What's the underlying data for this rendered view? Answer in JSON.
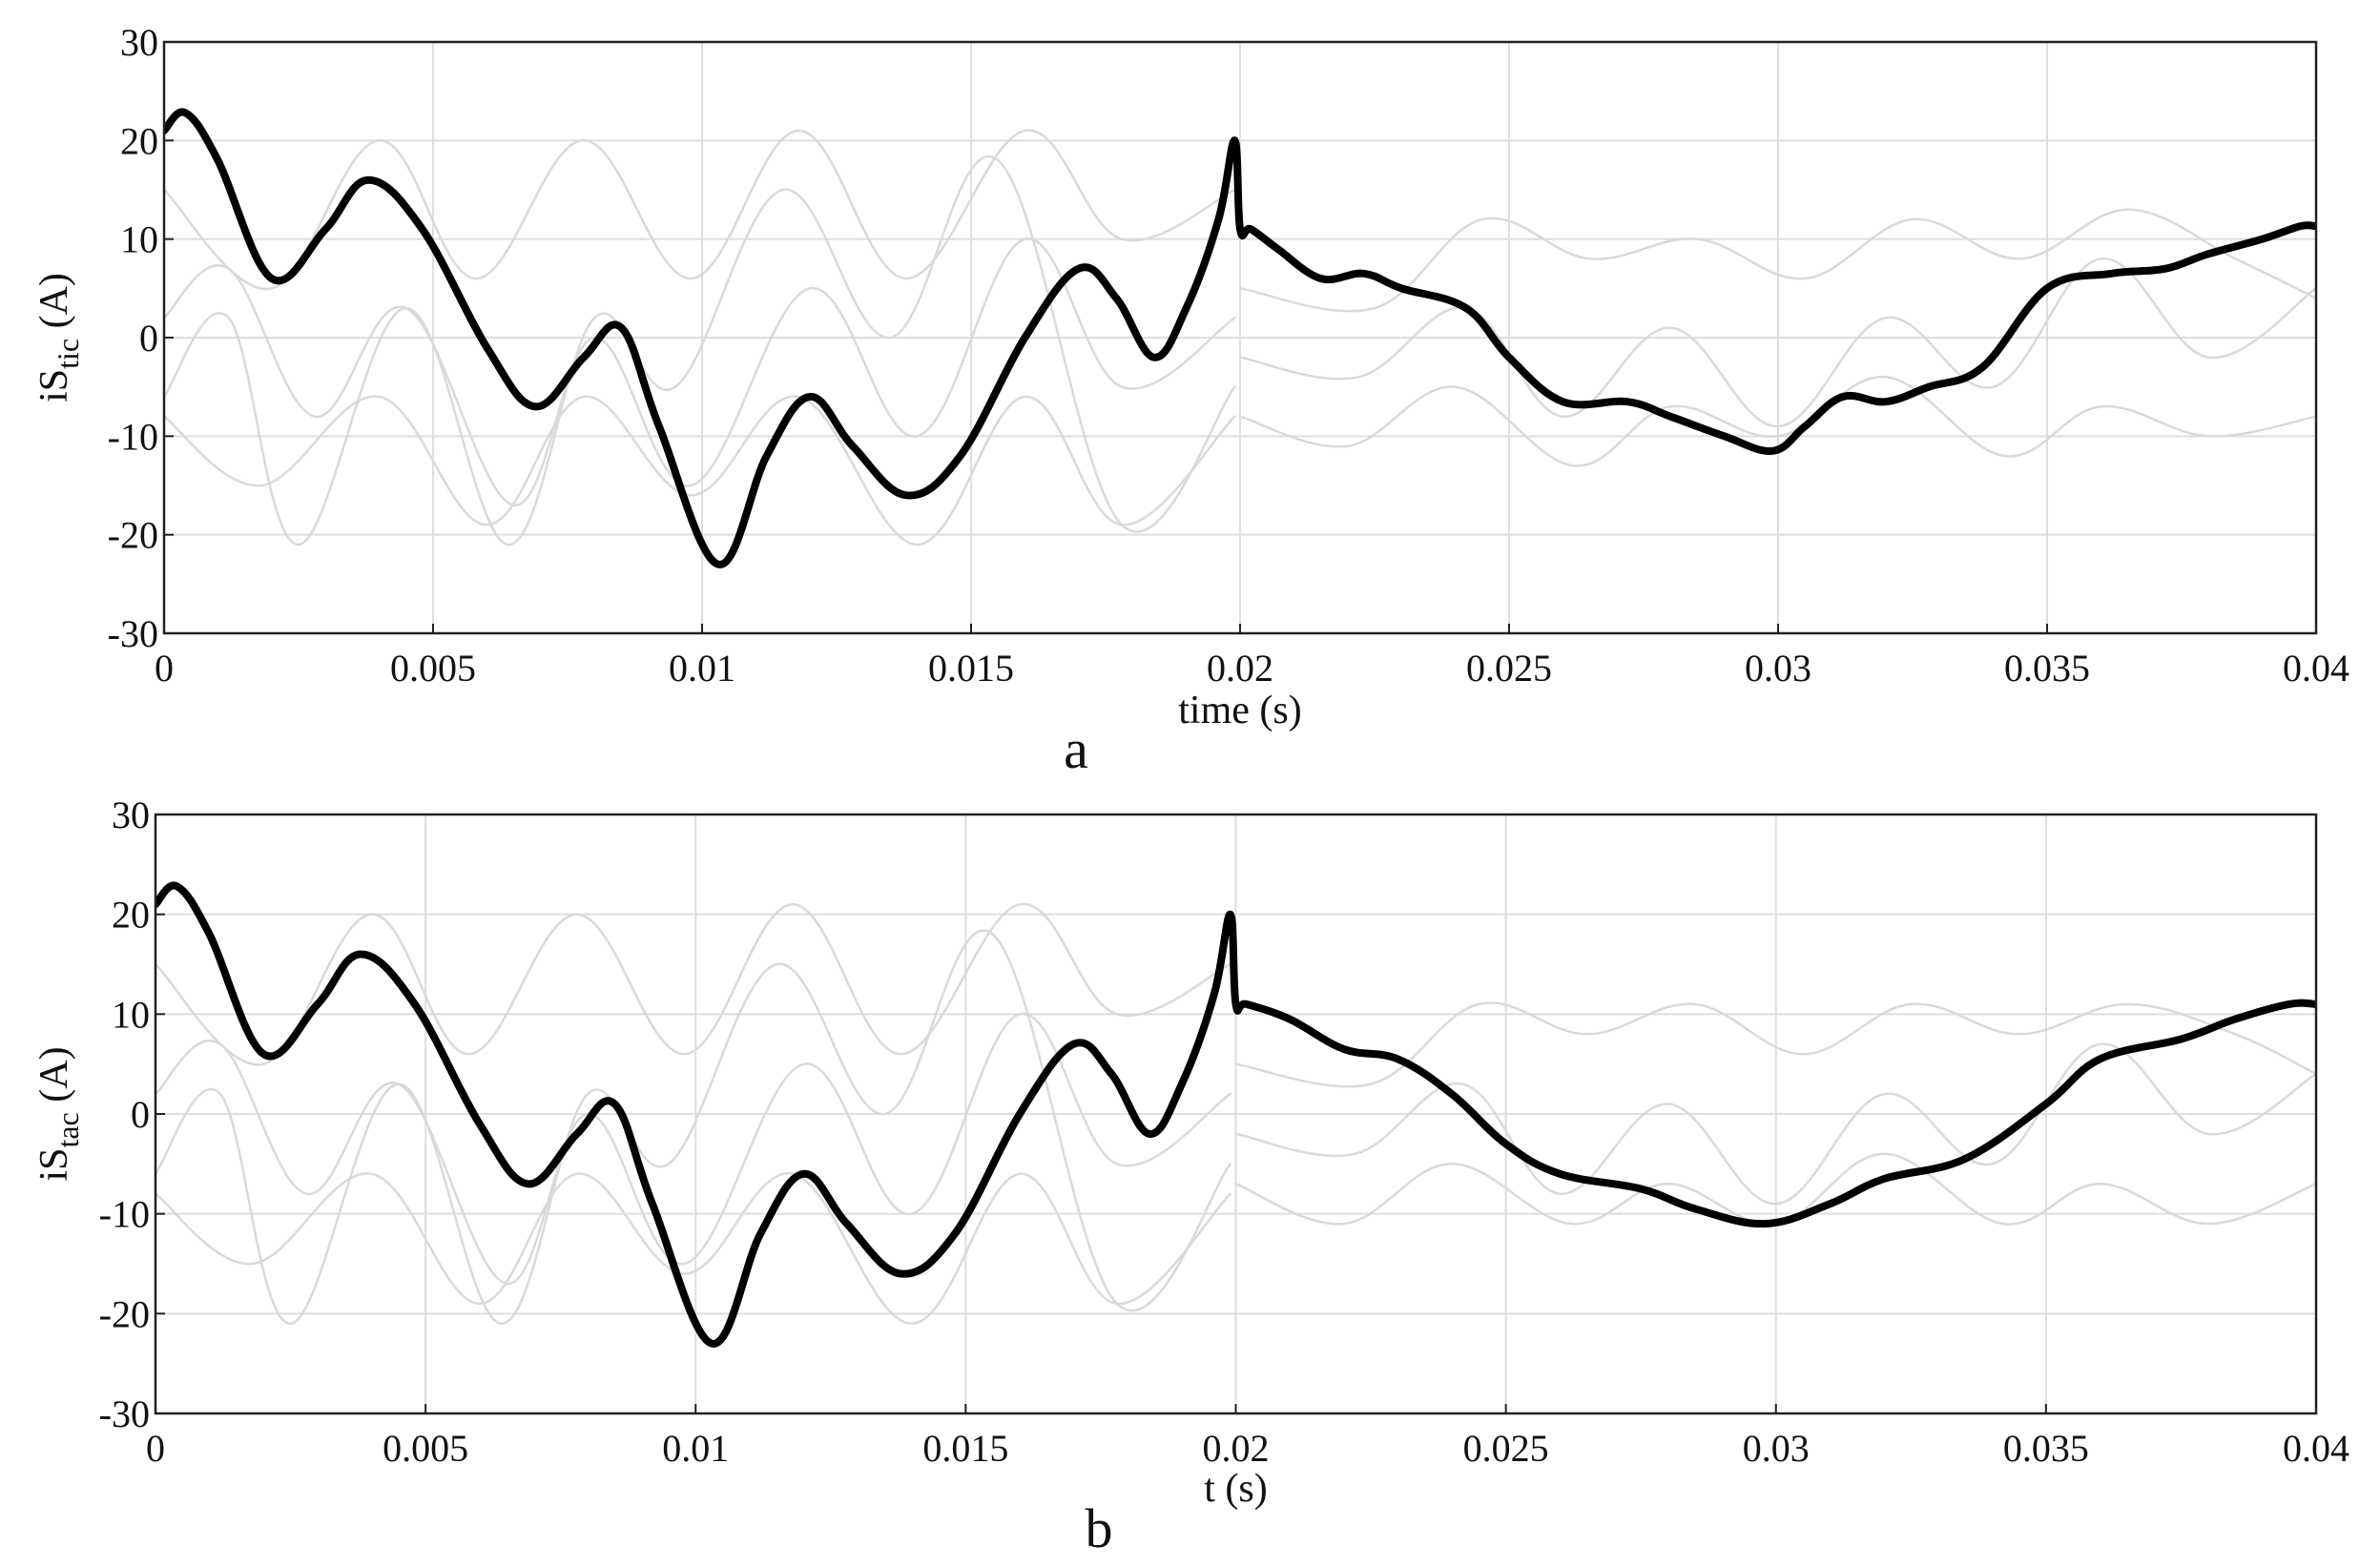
{
  "chart_data": [
    {
      "type": "line",
      "panel_label": "a",
      "xlabel": "time (s)",
      "ylabel": {
        "main": "iS",
        "sub": "tic",
        "unit": " (A)"
      },
      "xlim": [
        0,
        0.04
      ],
      "ylim": [
        -30,
        30
      ],
      "xticks": [
        0,
        0.005,
        0.01,
        0.015,
        0.02,
        0.025,
        0.03,
        0.035,
        0.04
      ],
      "xtick_labels": [
        "0",
        "0.005",
        "0.01",
        "0.015",
        "0.02",
        "0.025",
        "0.03",
        "0.035",
        "0.04"
      ],
      "yticks": [
        -30,
        -20,
        -10,
        0,
        10,
        20,
        30
      ],
      "ytick_labels": [
        "-30",
        "-20",
        "-10",
        "0",
        "10",
        "20",
        "30"
      ],
      "grid": true,
      "colors": {
        "main": "#000000",
        "background_curves": "#d9d9d9",
        "grid": "#dedede"
      },
      "series": [
        {
          "role": "main",
          "x": [
            0,
            0.0004,
            0.001,
            0.002,
            0.003,
            0.0038,
            0.0048,
            0.006,
            0.0069,
            0.0078,
            0.0085,
            0.0092,
            0.0103,
            0.0112,
            0.012,
            0.0128,
            0.0138,
            0.0148,
            0.016,
            0.017,
            0.0177,
            0.0184,
            0.019,
            0.0196,
            0.0199,
            0.02,
            0.0202,
            0.0207,
            0.0215,
            0.0223,
            0.023,
            0.0242,
            0.025,
            0.026,
            0.0272,
            0.028,
            0.029,
            0.0299,
            0.0305,
            0.0312,
            0.032,
            0.0328,
            0.0338,
            0.035,
            0.0362,
            0.0372,
            0.038,
            0.039,
            0.0397,
            0.04
          ],
          "y": [
            21,
            22.8,
            18,
            6,
            11,
            16,
            11,
            -1,
            -7,
            -2,
            1,
            -9,
            -23,
            -12,
            -6,
            -11,
            -16,
            -12,
            0,
            7,
            4,
            -2,
            3,
            12,
            20,
            11,
            11,
            9,
            6,
            6.5,
            5,
            3,
            -2,
            -6.5,
            -6.5,
            -8,
            -10,
            -11.5,
            -9,
            -6,
            -6.5,
            -5,
            -3,
            5,
            6.5,
            7,
            8.5,
            10,
            11.3,
            11.3
          ]
        },
        {
          "role": "background",
          "x": [
            0,
            0.002,
            0.004,
            0.0058,
            0.0078,
            0.0098,
            0.0118,
            0.0138,
            0.016,
            0.0178,
            0.0199
          ],
          "y": [
            15,
            5,
            20,
            6,
            20,
            6,
            21,
            6,
            21,
            10,
            15
          ]
        },
        {
          "role": "background",
          "x": [
            0,
            0.0012,
            0.0028,
            0.0045,
            0.0065,
            0.008,
            0.0098,
            0.012,
            0.014,
            0.016,
            0.0178,
            0.0199
          ],
          "y": [
            2,
            7,
            -8,
            3,
            -17,
            0,
            -15,
            5,
            -10,
            10,
            -5,
            2
          ]
        },
        {
          "role": "background",
          "x": [
            0,
            0.0012,
            0.0025,
            0.0045,
            0.0064,
            0.008,
            0.0095,
            0.0115,
            0.0135,
            0.0155,
            0.0178,
            0.0199
          ],
          "y": [
            -6,
            2,
            -21,
            3,
            -21,
            2,
            -5,
            15,
            0,
            18,
            -19,
            -5
          ]
        },
        {
          "role": "background",
          "x": [
            0,
            0.0018,
            0.004,
            0.006,
            0.0078,
            0.0098,
            0.0118,
            0.014,
            0.016,
            0.0178,
            0.0199
          ],
          "y": [
            -8,
            -15,
            -6,
            -19,
            -6,
            -16,
            -6,
            -21,
            -6,
            -19,
            -8
          ]
        },
        {
          "role": "background",
          "x": [
            0.02,
            0.0225,
            0.0245,
            0.0265,
            0.0285,
            0.0305,
            0.0325,
            0.0345,
            0.0365,
            0.0385,
            0.04
          ],
          "y": [
            5,
            3,
            12,
            8,
            10,
            6,
            12,
            8,
            13,
            8,
            4
          ]
        },
        {
          "role": "background",
          "x": [
            0.02,
            0.0222,
            0.0242,
            0.026,
            0.028,
            0.03,
            0.032,
            0.034,
            0.036,
            0.038,
            0.04
          ],
          "y": [
            -2,
            -4,
            3,
            -8,
            1,
            -9,
            2,
            -5,
            8,
            -2,
            5
          ]
        },
        {
          "role": "background",
          "x": [
            0.02,
            0.022,
            0.024,
            0.0262,
            0.028,
            0.03,
            0.032,
            0.0342,
            0.036,
            0.038,
            0.04
          ],
          "y": [
            -8,
            -11,
            -5,
            -13,
            -7,
            -10,
            -4,
            -12,
            -7,
            -10,
            -8
          ]
        }
      ]
    },
    {
      "type": "line",
      "panel_label": "b",
      "xlabel": "t (s)",
      "ylabel": {
        "main": "iS",
        "sub": "tac",
        "unit": " (A)"
      },
      "xlim": [
        0,
        0.04
      ],
      "ylim": [
        -30,
        30
      ],
      "xticks": [
        0,
        0.005,
        0.01,
        0.015,
        0.02,
        0.025,
        0.03,
        0.035,
        0.04
      ],
      "xtick_labels": [
        "0",
        "0.005",
        "0.01",
        "0.015",
        "0.02",
        "0.025",
        "0.03",
        "0.035",
        "0.04"
      ],
      "yticks": [
        -30,
        -20,
        -10,
        0,
        10,
        20,
        30
      ],
      "ytick_labels": [
        "-30",
        "-20",
        "-10",
        "0",
        "10",
        "20",
        "30"
      ],
      "grid": true,
      "colors": {
        "main": "#000000",
        "background_curves": "#d9d9d9",
        "grid": "#dedede"
      },
      "series": [
        {
          "role": "main",
          "x": [
            0,
            0.0004,
            0.001,
            0.002,
            0.003,
            0.0038,
            0.0048,
            0.006,
            0.0069,
            0.0078,
            0.0085,
            0.0092,
            0.0103,
            0.0112,
            0.012,
            0.0128,
            0.0138,
            0.0148,
            0.016,
            0.017,
            0.0177,
            0.0184,
            0.019,
            0.0196,
            0.0199,
            0.02,
            0.0202,
            0.021,
            0.022,
            0.023,
            0.024,
            0.025,
            0.026,
            0.0275,
            0.0285,
            0.0298,
            0.031,
            0.032,
            0.0335,
            0.035,
            0.036,
            0.0375,
            0.0385,
            0.0395,
            0.04
          ],
          "y": [
            21,
            22.8,
            18,
            6,
            11,
            16,
            11,
            -1,
            -7,
            -2,
            1,
            -9,
            -23,
            -12,
            -6,
            -11,
            -16,
            -12,
            0,
            7,
            4,
            -2,
            3,
            12,
            20,
            11,
            11,
            9.5,
            6.5,
            5.5,
            2,
            -3,
            -6,
            -7.5,
            -9.5,
            -11,
            -9,
            -6.5,
            -4.5,
            1,
            5.5,
            7.5,
            9.5,
            11,
            11
          ]
        },
        {
          "role": "background",
          "x": [
            0,
            0.002,
            0.004,
            0.0058,
            0.0078,
            0.0098,
            0.0118,
            0.0138,
            0.016,
            0.0178,
            0.0199
          ],
          "y": [
            15,
            5,
            20,
            6,
            20,
            6,
            21,
            6,
            21,
            10,
            15
          ]
        },
        {
          "role": "background",
          "x": [
            0,
            0.0012,
            0.0028,
            0.0045,
            0.0065,
            0.008,
            0.0098,
            0.012,
            0.014,
            0.016,
            0.0178,
            0.0199
          ],
          "y": [
            2,
            7,
            -8,
            3,
            -17,
            0,
            -15,
            5,
            -10,
            10,
            -5,
            2
          ]
        },
        {
          "role": "background",
          "x": [
            0,
            0.0012,
            0.0025,
            0.0045,
            0.0064,
            0.008,
            0.0095,
            0.0115,
            0.0135,
            0.0155,
            0.0178,
            0.0199
          ],
          "y": [
            -6,
            2,
            -21,
            3,
            -21,
            2,
            -5,
            15,
            0,
            18,
            -19,
            -5
          ]
        },
        {
          "role": "background",
          "x": [
            0,
            0.0018,
            0.004,
            0.006,
            0.0078,
            0.0098,
            0.0118,
            0.014,
            0.016,
            0.0178,
            0.0199
          ],
          "y": [
            -8,
            -15,
            -6,
            -19,
            -6,
            -16,
            -6,
            -21,
            -6,
            -19,
            -8
          ]
        },
        {
          "role": "background",
          "x": [
            0.02,
            0.0225,
            0.0245,
            0.0265,
            0.0285,
            0.0305,
            0.0325,
            0.0345,
            0.0365,
            0.0385,
            0.04
          ],
          "y": [
            5,
            3,
            11,
            8,
            11,
            6,
            11,
            8,
            11,
            8,
            4
          ]
        },
        {
          "role": "background",
          "x": [
            0.02,
            0.0222,
            0.0242,
            0.026,
            0.028,
            0.03,
            0.032,
            0.034,
            0.036,
            0.038,
            0.04
          ],
          "y": [
            -2,
            -4,
            3,
            -8,
            1,
            -9,
            2,
            -5,
            7,
            -2,
            4
          ]
        },
        {
          "role": "background",
          "x": [
            0.02,
            0.022,
            0.024,
            0.0262,
            0.028,
            0.03,
            0.032,
            0.0342,
            0.036,
            0.038,
            0.04
          ],
          "y": [
            -7,
            -11,
            -5,
            -11,
            -7,
            -11,
            -4,
            -11,
            -7,
            -11,
            -7
          ]
        }
      ]
    }
  ]
}
